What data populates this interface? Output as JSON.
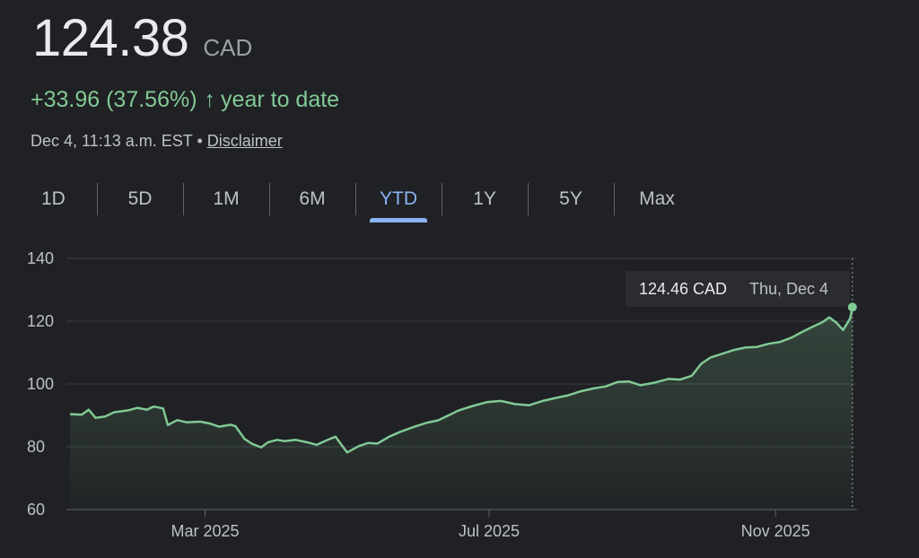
{
  "quote": {
    "price": "124.38",
    "currency": "CAD",
    "change": "+33.96 (37.56%)",
    "arrow": "↑",
    "period_label": "year to date",
    "timestamp": "Dec 4, 11:13 a.m. EST",
    "separator": "•",
    "disclaimer": "Disclaimer"
  },
  "tabs": [
    {
      "label": "1D",
      "active": false
    },
    {
      "label": "5D",
      "active": false
    },
    {
      "label": "1M",
      "active": false
    },
    {
      "label": "6M",
      "active": false
    },
    {
      "label": "YTD",
      "active": true
    },
    {
      "label": "1Y",
      "active": false
    },
    {
      "label": "5Y",
      "active": false
    },
    {
      "label": "Max",
      "active": false
    }
  ],
  "tooltip": {
    "value": "124.46 CAD",
    "date": "Thu, Dec 4"
  },
  "colors": {
    "line": "#81c995",
    "accent": "#8ab4f8",
    "background": "#202124"
  },
  "chart_data": {
    "type": "area",
    "ylim": [
      60,
      140
    ],
    "yticks": [
      60,
      80,
      100,
      120,
      140
    ],
    "xlim": [
      "2025-01-02",
      "2025-12-06"
    ],
    "xticks": [
      {
        "date": "2025-03-01",
        "label": "Mar 2025"
      },
      {
        "date": "2025-07-01",
        "label": "Jul 2025"
      },
      {
        "date": "2025-11-01",
        "label": "Nov 2025"
      }
    ],
    "series": [
      {
        "points": [
          [
            "2025-01-02",
            90.4
          ],
          [
            "2025-01-07",
            90.2
          ],
          [
            "2025-01-10",
            91.8
          ],
          [
            "2025-01-13",
            89.2
          ],
          [
            "2025-01-17",
            89.6
          ],
          [
            "2025-01-21",
            91.0
          ],
          [
            "2025-01-27",
            91.6
          ],
          [
            "2025-01-31",
            92.4
          ],
          [
            "2025-02-04",
            91.8
          ],
          [
            "2025-02-07",
            92.8
          ],
          [
            "2025-02-11",
            92.2
          ],
          [
            "2025-02-13",
            86.9
          ],
          [
            "2025-02-17",
            88.5
          ],
          [
            "2025-02-21",
            87.8
          ],
          [
            "2025-02-27",
            88.0
          ],
          [
            "2025-03-03",
            87.4
          ],
          [
            "2025-03-07",
            86.4
          ],
          [
            "2025-03-12",
            87.0
          ],
          [
            "2025-03-14",
            86.6
          ],
          [
            "2025-03-18",
            82.5
          ],
          [
            "2025-03-21",
            81.0
          ],
          [
            "2025-03-25",
            79.8
          ],
          [
            "2025-03-28",
            81.4
          ],
          [
            "2025-04-01",
            82.2
          ],
          [
            "2025-04-04",
            81.8
          ],
          [
            "2025-04-09",
            82.2
          ],
          [
            "2025-04-14",
            81.4
          ],
          [
            "2025-04-18",
            80.6
          ],
          [
            "2025-04-22",
            82.0
          ],
          [
            "2025-04-26",
            83.2
          ],
          [
            "2025-05-01",
            78.2
          ],
          [
            "2025-05-06",
            80.2
          ],
          [
            "2025-05-10",
            81.2
          ],
          [
            "2025-05-14",
            81.0
          ],
          [
            "2025-05-19",
            83.2
          ],
          [
            "2025-05-24",
            84.8
          ],
          [
            "2025-05-30",
            86.4
          ],
          [
            "2025-06-04",
            87.6
          ],
          [
            "2025-06-09",
            88.4
          ],
          [
            "2025-06-13",
            89.8
          ],
          [
            "2025-06-18",
            91.6
          ],
          [
            "2025-06-24",
            93.0
          ],
          [
            "2025-06-30",
            94.2
          ],
          [
            "2025-07-06",
            94.6
          ],
          [
            "2025-07-12",
            93.6
          ],
          [
            "2025-07-18",
            93.2
          ],
          [
            "2025-07-24",
            94.6
          ],
          [
            "2025-07-30",
            95.6
          ],
          [
            "2025-08-04",
            96.4
          ],
          [
            "2025-08-09",
            97.6
          ],
          [
            "2025-08-15",
            98.6
          ],
          [
            "2025-08-20",
            99.2
          ],
          [
            "2025-08-25",
            100.6
          ],
          [
            "2025-08-30",
            100.8
          ],
          [
            "2025-09-04",
            99.6
          ],
          [
            "2025-09-10",
            100.4
          ],
          [
            "2025-09-16",
            101.6
          ],
          [
            "2025-09-21",
            101.4
          ],
          [
            "2025-09-26",
            102.6
          ],
          [
            "2025-09-30",
            106.4
          ],
          [
            "2025-10-04",
            108.4
          ],
          [
            "2025-10-09",
            109.6
          ],
          [
            "2025-10-14",
            110.8
          ],
          [
            "2025-10-19",
            111.6
          ],
          [
            "2025-10-24",
            111.8
          ],
          [
            "2025-10-29",
            112.8
          ],
          [
            "2025-11-03",
            113.4
          ],
          [
            "2025-11-08",
            114.8
          ],
          [
            "2025-11-13",
            116.8
          ],
          [
            "2025-11-18",
            118.6
          ],
          [
            "2025-11-21",
            119.6
          ],
          [
            "2025-11-24",
            121.2
          ],
          [
            "2025-11-27",
            119.6
          ],
          [
            "2025-11-30",
            117.2
          ],
          [
            "2025-12-02",
            119.6
          ],
          [
            "2025-12-03",
            120.8
          ],
          [
            "2025-12-04",
            124.46
          ]
        ]
      }
    ]
  }
}
